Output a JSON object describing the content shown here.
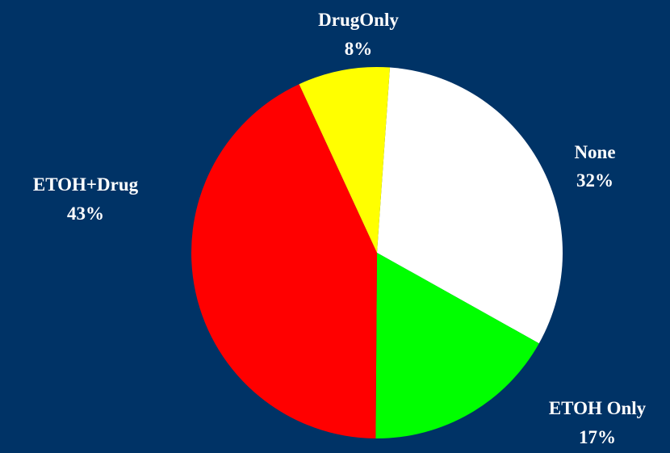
{
  "chart_data": {
    "type": "pie",
    "start_angle_deg": 4,
    "direction": "clockwise",
    "slices": [
      {
        "label": "None",
        "percent_label": "32%",
        "value": 32,
        "color": "#ffffff"
      },
      {
        "label": "ETOH Only",
        "percent_label": "17%",
        "value": 17,
        "color": "#00ff00"
      },
      {
        "label": "ETOH+Drug",
        "percent_label": "43%",
        "value": 43,
        "color": "#ff0000"
      },
      {
        "label": "DrugOnly",
        "percent_label": "8%",
        "value": 8,
        "color": "#ffff00"
      }
    ]
  },
  "colors": {
    "background": "#003366",
    "label_text": "#ffffff"
  }
}
